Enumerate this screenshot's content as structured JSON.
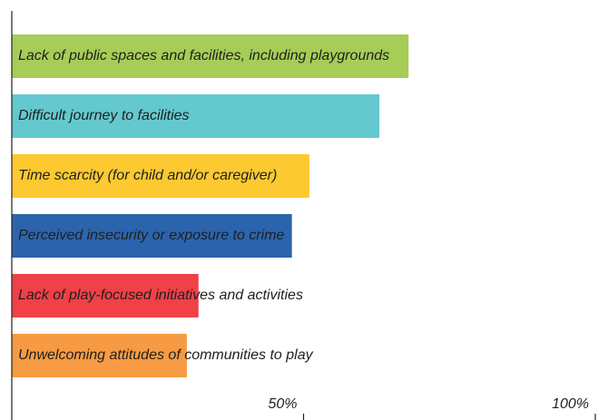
{
  "chart_data": {
    "type": "bar",
    "orientation": "horizontal",
    "categories": [
      "Lack of public spaces and facilities, including playgrounds",
      "Difficult journey to facilities",
      "Time scarcity (for child and/or caregiver)",
      "Perceived insecurity or exposure to crime",
      "Lack of play-focused initiatives and activities",
      "Unwelcoming attitudes of communities to play"
    ],
    "values": [
      68,
      63,
      51,
      48,
      32,
      30
    ],
    "colors": [
      "#a6cd57",
      "#63c9ce",
      "#fdc930",
      "#2b64ad",
      "#ef4147",
      "#f69b43"
    ],
    "x_ticks": [
      "50%",
      "100%"
    ],
    "x_tick_values": [
      50,
      100
    ],
    "xlim": [
      0,
      100
    ],
    "title": "",
    "xlabel": "",
    "ylabel": "",
    "grid": false,
    "legend": "none"
  }
}
